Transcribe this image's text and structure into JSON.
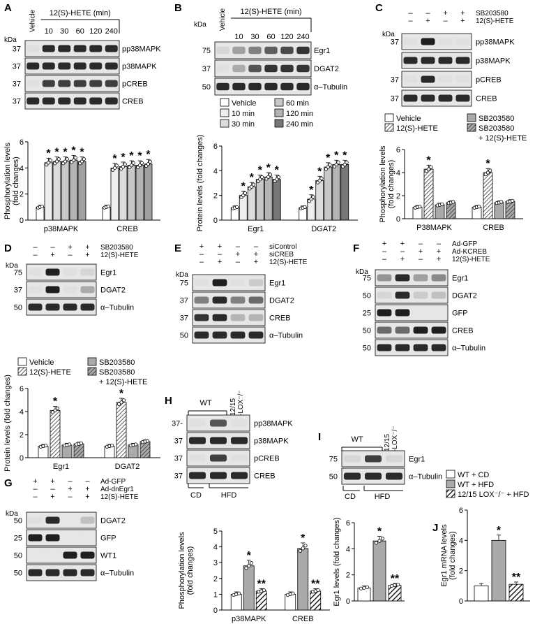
{
  "panels": {
    "A": {
      "letter": "A",
      "header": "12(S)-HETE (min)",
      "vehicle": "Vehicle",
      "times": [
        "10",
        "30",
        "60",
        "120",
        "240"
      ],
      "kda": "kDa",
      "blots": [
        {
          "mw": "37",
          "label": "pp38MAPK",
          "bands": [
            0.05,
            0.9,
            0.9,
            0.9,
            0.9,
            0.9
          ]
        },
        {
          "mw": "37",
          "label": "p38MAPK",
          "bands": [
            0.9,
            0.9,
            0.9,
            0.9,
            0.9,
            0.9
          ]
        },
        {
          "mw": "37",
          "label": "pCREB",
          "bands": [
            0.05,
            0.8,
            0.8,
            0.8,
            0.8,
            0.8
          ]
        },
        {
          "mw": "37",
          "label": "CREB",
          "bands": [
            0.9,
            0.9,
            0.9,
            0.9,
            0.9,
            0.9
          ]
        }
      ]
    },
    "B": {
      "letter": "B",
      "header": "12(S)-HETE (min)",
      "vehicle": "Vehicle",
      "times": [
        "10",
        "30",
        "60",
        "120",
        "240"
      ],
      "kda": "kDa",
      "blots": [
        {
          "mw": "75",
          "label": "Egr1",
          "bands": [
            0.1,
            0.35,
            0.5,
            0.65,
            0.75,
            0.85
          ]
        },
        {
          "mw": "37",
          "label": "DGAT2",
          "bands": [
            0.05,
            0.3,
            0.7,
            0.85,
            0.85,
            0.85
          ]
        },
        {
          "mw": "50",
          "label": "α–Tubulin",
          "bands": [
            0.9,
            0.9,
            0.9,
            0.9,
            0.9,
            0.9
          ]
        }
      ]
    },
    "C": {
      "letter": "C",
      "kda": "kDa",
      "treatments": [
        {
          "label": "SB203580",
          "signs": [
            "–",
            "–",
            "+",
            "+"
          ]
        },
        {
          "label": "12(S)-HETE",
          "signs": [
            "–",
            "+",
            "–",
            "+"
          ]
        }
      ],
      "blots": [
        {
          "mw": "37",
          "label": "pp38MAPK",
          "bands": [
            0.05,
            0.95,
            0.05,
            0.05
          ]
        },
        {
          "mw": "",
          "label": "p38MAPK",
          "bands": [
            0.9,
            0.9,
            0.9,
            0.9
          ]
        },
        {
          "mw": "37",
          "label": "pCREB",
          "bands": [
            0.05,
            0.9,
            0.05,
            0.05
          ]
        },
        {
          "mw": "37",
          "label": "CREB",
          "bands": [
            0.9,
            0.9,
            0.9,
            0.9
          ]
        }
      ]
    },
    "D": {
      "letter": "D",
      "kda": "kDa",
      "treatments": [
        {
          "label": "SB203580",
          "signs": [
            "–",
            "–",
            "+",
            "+"
          ]
        },
        {
          "label": "12(S)-HETE",
          "signs": [
            "–",
            "+",
            "–",
            "+"
          ]
        }
      ],
      "blots": [
        {
          "mw": "75",
          "label": "Egr1",
          "bands": [
            0.05,
            0.95,
            0.05,
            0.1
          ]
        },
        {
          "mw": "37",
          "label": "DGAT2",
          "bands": [
            0.05,
            0.95,
            0.05,
            0.3
          ]
        },
        {
          "mw": "50",
          "label": "α–Tubulin",
          "bands": [
            0.9,
            0.9,
            0.9,
            0.9
          ]
        }
      ]
    },
    "E": {
      "letter": "E",
      "kda": "kDa",
      "treatments": [
        {
          "label": "siControl",
          "signs": [
            "+",
            "+",
            "–",
            "–"
          ]
        },
        {
          "label": "siCREB",
          "signs": [
            "–",
            "–",
            "+",
            "+"
          ]
        },
        {
          "label": "12(S)-HETE",
          "signs": [
            "–",
            "+",
            "–",
            "+"
          ]
        }
      ],
      "blots": [
        {
          "mw": "75",
          "label": "Egr1",
          "bands": [
            0.05,
            0.95,
            0.05,
            0.15
          ]
        },
        {
          "mw": "37",
          "label": "DGAT2",
          "bands": [
            0.5,
            0.9,
            0.5,
            0.6
          ]
        },
        {
          "mw": "37",
          "label": "CREB",
          "bands": [
            0.85,
            0.9,
            0.25,
            0.25
          ]
        },
        {
          "mw": "50",
          "label": "α–Tubulin",
          "bands": [
            0.9,
            0.9,
            0.9,
            0.9
          ]
        }
      ]
    },
    "F": {
      "letter": "F",
      "kda": "kDa",
      "treatments": [
        {
          "label": "Ad-GFP",
          "signs": [
            "+",
            "+",
            "–",
            "–"
          ]
        },
        {
          "label": "Ad-KCREB",
          "signs": [
            "–",
            "–",
            "+",
            "+"
          ]
        },
        {
          "label": "12(S)-HETE",
          "signs": [
            "–",
            "+",
            "–",
            "+"
          ]
        }
      ],
      "blots": [
        {
          "mw": "75",
          "label": "Egr1",
          "bands": [
            0.4,
            0.9,
            0.35,
            0.45
          ]
        },
        {
          "mw": "50",
          "label": "DGAT2",
          "bands": [
            0.1,
            0.9,
            0.15,
            0.2
          ]
        },
        {
          "mw": "25",
          "label": "GFP",
          "bands": [
            0.95,
            0.95,
            0.02,
            0.02
          ]
        },
        {
          "mw": "50",
          "label": "CREB",
          "bands": [
            0.6,
            0.6,
            0.95,
            0.95
          ]
        },
        {
          "mw": "50",
          "label": "α–Tubulin",
          "bands": [
            0.9,
            0.9,
            0.9,
            0.9
          ]
        }
      ]
    },
    "G": {
      "letter": "G",
      "kda": "kDa",
      "treatments": [
        {
          "label": "Ad-GFP",
          "signs": [
            "+",
            "+",
            "–",
            "–"
          ]
        },
        {
          "label": "Ad-dnEgr1",
          "signs": [
            "–",
            "–",
            "+",
            "+"
          ]
        },
        {
          "label": "12(S)-HETE",
          "signs": [
            "–",
            "+",
            "–",
            "+"
          ]
        }
      ],
      "blots": [
        {
          "mw": "50",
          "label": "DGAT2",
          "bands": [
            0.05,
            0.9,
            0.02,
            0.2
          ]
        },
        {
          "mw": "25",
          "label": "GFP",
          "bands": [
            0.95,
            0.95,
            0.02,
            0.02
          ]
        },
        {
          "mw": "50",
          "label": "WT1",
          "bands": [
            0.02,
            0.02,
            0.95,
            0.95
          ]
        },
        {
          "mw": "50",
          "label": "α–Tubulin",
          "bands": [
            0.9,
            0.9,
            0.9,
            0.9
          ]
        }
      ]
    },
    "H": {
      "letter": "H",
      "wt": "WT",
      "lox": "12/15",
      "lox2": "-LOX⁻/⁻",
      "cd": "CD",
      "hfd": "HFD",
      "blots": [
        {
          "mw": "37-",
          "label": "pp38MAPK",
          "bands": [
            0.05,
            0.7,
            0.05
          ]
        },
        {
          "mw": "37",
          "label": "p38MAPK",
          "bands": [
            0.9,
            0.9,
            0.9
          ]
        },
        {
          "mw": "37",
          "label": "pCREB",
          "bands": [
            0.05,
            0.8,
            0.05
          ]
        },
        {
          "mw": "37",
          "label": "CREB",
          "bands": [
            0.9,
            0.9,
            0.9
          ]
        }
      ]
    },
    "I": {
      "letter": "I",
      "wt": "WT",
      "lox": "12/15",
      "lox2": "-LOX⁻/⁻",
      "cd": "CD",
      "hfd": "HFD",
      "blots": [
        {
          "mw": "75",
          "label": "Egr1",
          "bands": [
            0.1,
            0.8,
            0.1
          ]
        },
        {
          "mw": "50",
          "label": "α–Tubulin",
          "bands": [
            0.9,
            0.9,
            0.9
          ]
        }
      ]
    },
    "J": {
      "letter": "J"
    }
  },
  "legends": {
    "B": [
      "Vehicle",
      "10 min",
      "30 min",
      "60 min",
      "120 min",
      "240 min"
    ],
    "C": [
      "Vehicle",
      "12(S)-HETE",
      "SB203580",
      "SB203580",
      "+ 12(S)-HETE"
    ],
    "D": [
      "Vehicle",
      "12(S)-HETE",
      "SB203580",
      "SB203580",
      "+ 12(S)-HETE"
    ],
    "IJ": [
      "WT + CD",
      "WT + HFD",
      "12/15 LOX⁻/⁻ + HFD"
    ]
  },
  "chart_data": [
    {
      "panel": "A",
      "type": "bar",
      "ylabel": "Phosphorylation levels (fold changes)",
      "ylim": [
        0,
        6
      ],
      "yticks": [
        0,
        2,
        4,
        6
      ],
      "groups": [
        "p38MAPK",
        "CREB"
      ],
      "series": [
        {
          "name": "Vehicle",
          "values": [
            1.0,
            1.0
          ]
        },
        {
          "name": "10 min",
          "values": [
            4.4,
            4.0
          ]
        },
        {
          "name": "30 min",
          "values": [
            4.5,
            4.1
          ]
        },
        {
          "name": "60 min",
          "values": [
            4.5,
            4.2
          ]
        },
        {
          "name": "120 min",
          "values": [
            4.6,
            4.2
          ]
        },
        {
          "name": "240 min",
          "values": [
            4.5,
            4.3
          ]
        }
      ],
      "significant": "*"
    },
    {
      "panel": "B",
      "type": "bar",
      "ylabel": "Protein levels (fold changes)",
      "ylim": [
        0,
        6
      ],
      "yticks": [
        0,
        2,
        4,
        6
      ],
      "groups": [
        "Egr1",
        "DGAT2"
      ],
      "series": [
        {
          "name": "Vehicle",
          "values": [
            1.0,
            1.0
          ]
        },
        {
          "name": "10 min",
          "values": [
            2.0,
            1.7
          ]
        },
        {
          "name": "30 min",
          "values": [
            2.7,
            3.2
          ]
        },
        {
          "name": "60 min",
          "values": [
            3.3,
            4.3
          ]
        },
        {
          "name": "120 min",
          "values": [
            3.5,
            4.5
          ]
        },
        {
          "name": "240 min",
          "values": [
            3.3,
            4.5
          ]
        }
      ],
      "significant": "*"
    },
    {
      "panel": "C",
      "type": "bar",
      "ylabel": "Phosphorylation levels (fold changes)",
      "ylim": [
        0,
        6
      ],
      "yticks": [
        0,
        2,
        4,
        6
      ],
      "groups": [
        "P38MAPK",
        "CREB"
      ],
      "series": [
        {
          "name": "Vehicle",
          "values": [
            1.0,
            1.0
          ]
        },
        {
          "name": "12(S)-HETE",
          "values": [
            4.3,
            4.0
          ]
        },
        {
          "name": "SB203580",
          "values": [
            1.2,
            1.4
          ]
        },
        {
          "name": "SB203580 + 12(S)-HETE",
          "values": [
            1.4,
            1.5
          ]
        }
      ],
      "significant": "*"
    },
    {
      "panel": "D",
      "type": "bar",
      "ylabel": "Protein levels (fold changes)",
      "ylim": [
        0,
        6
      ],
      "yticks": [
        0,
        2,
        4,
        6
      ],
      "groups": [
        "Egr1",
        "DGAT2"
      ],
      "series": [
        {
          "name": "Vehicle",
          "values": [
            1.0,
            1.0
          ]
        },
        {
          "name": "12(S)-HETE",
          "values": [
            4.1,
            4.8
          ]
        },
        {
          "name": "SB203580",
          "values": [
            1.1,
            1.1
          ]
        },
        {
          "name": "SB203580 + 12(S)-HETE",
          "values": [
            1.2,
            1.4
          ]
        }
      ],
      "significant": "*"
    },
    {
      "panel": "H",
      "type": "bar",
      "ylabel": "Phosphorylation levels (fold changes)",
      "ylim": [
        0,
        5
      ],
      "yticks": [
        0,
        1,
        2,
        3,
        4,
        5
      ],
      "groups": [
        "p38MAPK",
        "CREB"
      ],
      "series": [
        {
          "name": "WT + CD",
          "values": [
            1.0,
            1.0
          ]
        },
        {
          "name": "WT + HFD",
          "values": [
            2.8,
            3.9
          ]
        },
        {
          "name": "12/15 LOX⁻/⁻ + HFD",
          "values": [
            1.2,
            1.2
          ]
        }
      ],
      "marks": [
        "",
        "*",
        "**"
      ]
    },
    {
      "panel": "I",
      "type": "bar",
      "ylabel": "Egr1 levels (fold changes)",
      "ylim": [
        0,
        6
      ],
      "yticks": [
        0,
        2,
        4,
        6
      ],
      "groups": [
        ""
      ],
      "series": [
        {
          "name": "WT + CD",
          "values": [
            1.0
          ]
        },
        {
          "name": "WT + HFD",
          "values": [
            4.6
          ]
        },
        {
          "name": "12/15 LOX⁻/⁻ + HFD",
          "values": [
            1.2
          ]
        }
      ],
      "marks": [
        "",
        "*",
        "**"
      ]
    },
    {
      "panel": "J",
      "type": "bar",
      "ylabel": "Egr1 mRNA levels (fold changes)",
      "ylim": [
        0,
        6
      ],
      "yticks": [
        0,
        2,
        4,
        6
      ],
      "groups": [
        ""
      ],
      "series": [
        {
          "name": "WT + CD",
          "values": [
            1.0
          ]
        },
        {
          "name": "WT + HFD",
          "values": [
            4.0
          ]
        },
        {
          "name": "12/15 LOX⁻/⁻ + HFD",
          "values": [
            1.1
          ]
        }
      ],
      "marks": [
        "",
        "*",
        "**"
      ]
    }
  ]
}
